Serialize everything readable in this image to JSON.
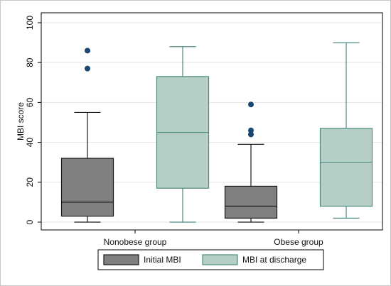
{
  "chart_data": {
    "type": "box",
    "title": "",
    "xlabel": "",
    "ylabel": "MBI score",
    "ylim": [
      0,
      100
    ],
    "yticks": [
      0,
      20,
      40,
      60,
      80,
      100
    ],
    "grid": "horizontal",
    "legend_position": "bottom",
    "categories": [
      "Nonobese group",
      "Obese group"
    ],
    "series": [
      {
        "name": "Initial MBI",
        "color": "#808080",
        "edge": "#1a1a1a",
        "boxes": [
          {
            "whisker_low": 0,
            "q1": 3,
            "median": 10,
            "q3": 32,
            "whisker_high": 55,
            "outliers": [
              77,
              86
            ]
          },
          {
            "whisker_low": 0,
            "q1": 2,
            "median": 8,
            "q3": 18,
            "whisker_high": 39,
            "outliers": [
              44,
              46,
              59
            ]
          }
        ]
      },
      {
        "name": "MBI at discharge",
        "color": "#b6cfc6",
        "edge": "#4f8a82",
        "boxes": [
          {
            "whisker_low": 0,
            "q1": 17,
            "median": 45,
            "q3": 73,
            "whisker_high": 88,
            "outliers": []
          },
          {
            "whisker_low": 2,
            "q1": 8,
            "median": 30,
            "q3": 47,
            "whisker_high": 90,
            "outliers": []
          }
        ]
      }
    ],
    "outlier_color": "#1a476f"
  }
}
